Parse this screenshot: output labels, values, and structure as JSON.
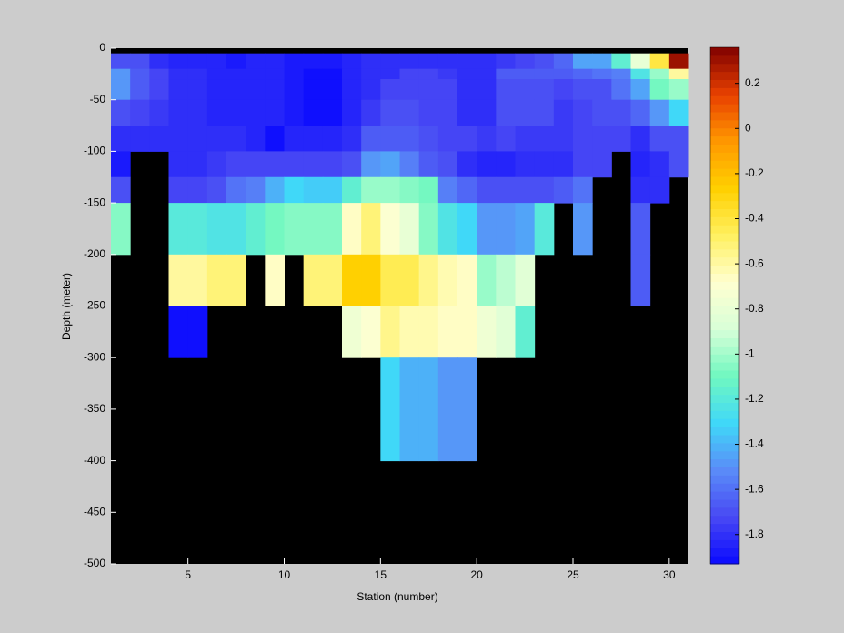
{
  "chart_data": {
    "type": "heatmap",
    "xlabel": "Station (number)",
    "ylabel": "Depth (meter)",
    "x_edges": [
      1,
      2,
      3,
      4,
      5,
      6,
      7,
      8,
      9,
      10,
      11,
      12,
      13,
      14,
      15,
      16,
      17,
      18,
      19,
      20,
      21,
      22,
      23,
      24,
      25,
      26,
      27,
      28,
      29,
      30,
      31
    ],
    "y_edges": [
      0,
      -5,
      -20,
      -30,
      -50,
      -75,
      -100,
      -125,
      -150,
      -200,
      -250,
      -300,
      -400,
      -500
    ],
    "xlim": [
      1,
      31
    ],
    "xticks": [
      5,
      10,
      15,
      20,
      25,
      30
    ],
    "ylim": [
      -500,
      0
    ],
    "yticks": [
      0,
      -50,
      -100,
      -150,
      -200,
      -250,
      -300,
      -350,
      -400,
      -450,
      -500
    ],
    "clim": [
      -1.93,
      0.36
    ],
    "cticks": [
      0.2,
      0,
      -0.2,
      -0.4,
      -0.6,
      -0.8,
      -1,
      -1.2,
      -1.4,
      -1.6,
      -1.8
    ],
    "colormap": [
      "#0a0aff",
      "#4848f4",
      "#5a8cf8",
      "#40d8f8",
      "#70f8c0",
      "#d8ffd8",
      "#ffffd0",
      "#fff060",
      "#ffd000",
      "#ff9800",
      "#e84000",
      "#800000"
    ],
    "missing_color": "#000000",
    "values": [
      [
        null,
        null,
        null,
        null,
        null,
        null,
        null,
        null,
        null,
        null,
        null,
        null,
        null,
        null,
        null,
        null,
        null,
        null,
        null,
        null,
        null,
        null,
        null,
        null,
        null,
        null,
        null,
        null,
        null,
        null
      ],
      [
        -1.7,
        -1.7,
        -1.82,
        -1.85,
        -1.85,
        -1.85,
        -1.88,
        -1.85,
        -1.85,
        -1.88,
        -1.88,
        -1.88,
        -1.85,
        -1.82,
        -1.8,
        -1.82,
        -1.82,
        -1.82,
        -1.8,
        -1.82,
        -1.78,
        -1.75,
        -1.7,
        -1.62,
        -1.45,
        -1.45,
        -1.15,
        -0.8,
        -0.4,
        0.3
      ],
      [
        -1.5,
        -1.65,
        -1.75,
        -1.8,
        -1.8,
        -1.85,
        -1.85,
        -1.85,
        -1.85,
        -1.88,
        -1.9,
        -1.9,
        -1.85,
        -1.82,
        -1.8,
        -1.75,
        -1.75,
        -1.78,
        -1.8,
        -1.8,
        -1.65,
        -1.65,
        -1.65,
        -1.65,
        -1.62,
        -1.6,
        -1.55,
        -1.25,
        -1.0,
        -0.6
      ],
      [
        -1.5,
        -1.65,
        -1.75,
        -1.8,
        -1.8,
        -1.85,
        -1.85,
        -1.85,
        -1.85,
        -1.88,
        -1.9,
        -1.9,
        -1.85,
        -1.8,
        -1.75,
        -1.72,
        -1.72,
        -1.75,
        -1.8,
        -1.8,
        -1.7,
        -1.68,
        -1.7,
        -1.72,
        -1.7,
        -1.68,
        -1.6,
        -1.45,
        -1.1,
        -1.0
      ],
      [
        -1.7,
        -1.75,
        -1.78,
        -1.8,
        -1.8,
        -1.85,
        -1.85,
        -1.85,
        -1.85,
        -1.88,
        -1.9,
        -1.9,
        -1.85,
        -1.78,
        -1.7,
        -1.7,
        -1.72,
        -1.72,
        -1.8,
        -1.8,
        -1.7,
        -1.7,
        -1.7,
        -1.78,
        -1.72,
        -1.7,
        -1.68,
        -1.62,
        -1.5,
        -1.3
      ],
      [
        -1.8,
        -1.8,
        -1.82,
        -1.82,
        -1.82,
        -1.8,
        -1.82,
        -1.85,
        -1.9,
        -1.85,
        -1.85,
        -1.85,
        -1.8,
        -1.65,
        -1.65,
        -1.65,
        -1.7,
        -1.72,
        -1.72,
        -1.78,
        -1.75,
        -1.78,
        -1.78,
        -1.78,
        -1.75,
        -1.75,
        -1.72,
        -1.8,
        -1.7,
        -1.7
      ],
      [
        -1.88,
        null,
        null,
        -1.82,
        -1.82,
        -1.78,
        -1.75,
        -1.75,
        -1.75,
        -1.72,
        -1.72,
        -1.72,
        -1.68,
        -1.5,
        -1.45,
        -1.55,
        -1.65,
        -1.68,
        -1.8,
        -1.85,
        -1.85,
        -1.82,
        -1.8,
        -1.8,
        -1.75,
        -1.75,
        null,
        -1.85,
        -1.82,
        -1.7
      ],
      [
        -1.68,
        null,
        null,
        -1.72,
        -1.72,
        -1.68,
        -1.6,
        -1.55,
        -1.4,
        -1.3,
        -1.35,
        -1.35,
        -1.15,
        -1.0,
        -1.0,
        -1.05,
        -1.1,
        -1.55,
        -1.62,
        -1.68,
        -1.68,
        -1.7,
        -1.68,
        -1.65,
        -1.6,
        null,
        null,
        -1.82,
        -1.82,
        null
      ],
      [
        -1.05,
        null,
        null,
        -1.2,
        -1.2,
        -1.25,
        -1.25,
        -1.15,
        -1.1,
        -1.05,
        -1.05,
        -1.05,
        -0.65,
        -0.5,
        -0.7,
        -0.8,
        -1.05,
        -1.25,
        -1.3,
        -1.5,
        -1.5,
        -1.45,
        -1.2,
        null,
        -1.5,
        null,
        null,
        -1.65,
        null,
        null
      ],
      [
        null,
        null,
        null,
        -0.6,
        -0.6,
        -0.5,
        -0.5,
        null,
        -0.65,
        null,
        -0.5,
        -0.5,
        -0.25,
        -0.25,
        -0.45,
        -0.45,
        -0.55,
        -0.62,
        -0.65,
        -1.0,
        -0.95,
        -0.85,
        null,
        null,
        null,
        null,
        null,
        -1.65,
        null,
        null
      ],
      [
        null,
        null,
        null,
        -1.92,
        -1.92,
        null,
        null,
        null,
        null,
        null,
        null,
        null,
        -0.75,
        -0.7,
        -0.55,
        -0.62,
        -0.62,
        -0.65,
        -0.65,
        -0.75,
        -0.85,
        -1.15,
        null,
        null,
        null,
        null,
        null,
        null,
        null,
        null
      ],
      [
        null,
        null,
        null,
        null,
        null,
        null,
        null,
        null,
        null,
        null,
        null,
        null,
        null,
        null,
        -1.3,
        -1.4,
        -1.4,
        -1.5,
        -1.5,
        null,
        null,
        null,
        null,
        null,
        null,
        null,
        null,
        null,
        null,
        null
      ],
      [
        null,
        null,
        null,
        null,
        null,
        null,
        null,
        null,
        null,
        null,
        null,
        null,
        null,
        null,
        null,
        null,
        null,
        null,
        null,
        null,
        null,
        null,
        null,
        null,
        null,
        null,
        null,
        null,
        null,
        null
      ]
    ]
  }
}
